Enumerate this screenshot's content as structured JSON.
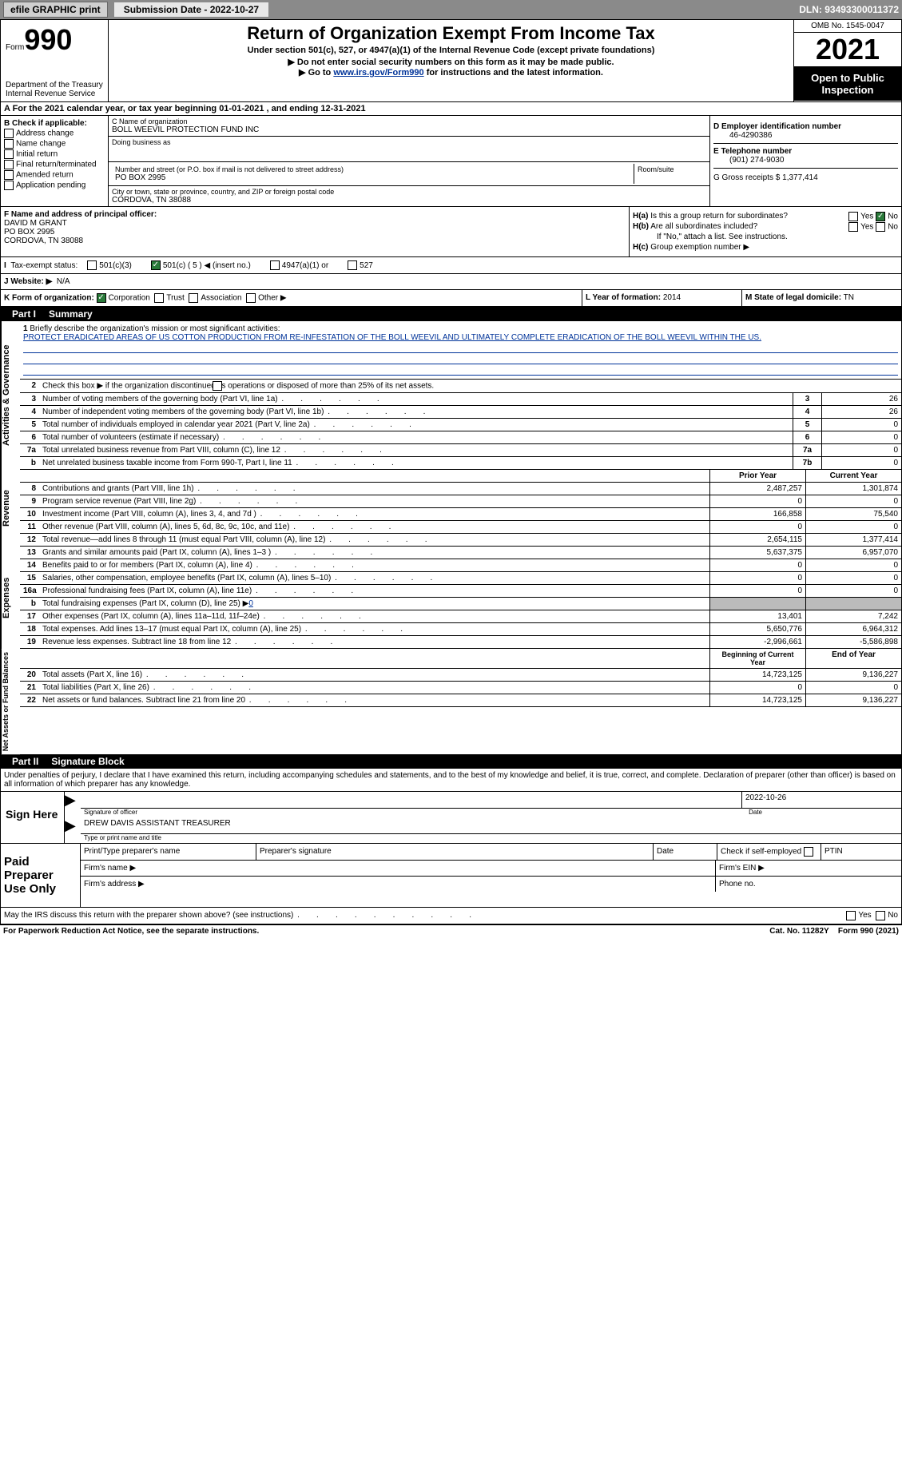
{
  "meta": {
    "efile": "efile GRAPHIC print",
    "submission_label": "Submission Date - 2022-10-27",
    "dln_label": "DLN: 93493300011372"
  },
  "header": {
    "form_prefix": "Form",
    "form_num": "990",
    "title": "Return of Organization Exempt From Income Tax",
    "subtitle": "Under section 501(c), 527, or 4947(a)(1) of the Internal Revenue Code (except private foundations)",
    "note1": "▶ Do not enter social security numbers on this form as it may be made public.",
    "note2_pre": "▶ Go to ",
    "note2_link": "www.irs.gov/Form990",
    "note2_post": " for instructions and the latest information.",
    "omb": "OMB No. 1545-0047",
    "year": "2021",
    "pub1": "Open to Public",
    "pub2": "Inspection",
    "dept": "Department of the Treasury",
    "irs": "Internal Revenue Service"
  },
  "sectionA": {
    "text": "A For the 2021 calendar year, or tax year beginning 01-01-2021    , and ending 12-31-2021"
  },
  "sectionB": {
    "label": "B Check if applicable:",
    "items": [
      "Address change",
      "Name change",
      "Initial return",
      "Final return/terminated",
      "Amended return",
      "Application pending"
    ]
  },
  "sectionC": {
    "name_label": "C Name of organization",
    "name": "BOLL WEEVIL PROTECTION FUND INC",
    "dba_label": "Doing business as",
    "dba": "",
    "addr_label": "Number and street (or P.O. box if mail is not delivered to street address)",
    "room_label": "Room/suite",
    "addr": "PO BOX 2995",
    "city_label": "City or town, state or province, country, and ZIP or foreign postal code",
    "city": "CORDOVA, TN  38088"
  },
  "sectionD": {
    "label": "D Employer identification number",
    "val": "46-4290386"
  },
  "sectionE": {
    "label": "E Telephone number",
    "val": "(901) 274-9030"
  },
  "sectionG": {
    "label": "G Gross receipts $",
    "val": "1,377,414"
  },
  "sectionF": {
    "label": "F Name and address of principal officer:",
    "name": "DAVID M GRANT",
    "addr1": "PO BOX 2995",
    "addr2": "CORDOVA, TN  38088"
  },
  "sectionH": {
    "a": "Is this a group return for subordinates?",
    "b": "Are all subordinates included?",
    "note": "If \"No,\" attach a list. See instructions.",
    "c": "Group exemption number ▶",
    "yes": "Yes",
    "no": "No"
  },
  "taxstatus": {
    "label": "Tax-exempt status:",
    "o1": "501(c)(3)",
    "o2": "501(c) ( 5 ) ◀ (insert no.)",
    "o3": "4947(a)(1) or",
    "o4": "527"
  },
  "website": {
    "label": "J   Website: ▶",
    "val": "N/A"
  },
  "sectionK": {
    "label": "K Form of organization:",
    "o1": "Corporation",
    "o2": "Trust",
    "o3": "Association",
    "o4": "Other ▶"
  },
  "sectionL": {
    "label": "L Year of formation:",
    "val": "2014"
  },
  "sectionM": {
    "label": "M State of legal domicile:",
    "val": "TN"
  },
  "part1": {
    "hdr": "Part I",
    "title": "Summary"
  },
  "mission": {
    "q": "Briefly describe the organization's mission or most significant activities:",
    "txt": "PROTECT ERADICATED AREAS OF US COTTON PRODUCTION FROM RE-INFESTATION OF THE BOLL WEEVIL AND ULTIMATELY COMPLETE ERADICATION OF THE BOLL WEEVIL WITHIN THE US."
  },
  "summary": {
    "side_ag": "Activities & Governance",
    "side_rev": "Revenue",
    "side_exp": "Expenses",
    "side_net": "Net Assets or Fund Balances",
    "q2": "Check this box ▶        if the organization discontinued its operations or disposed of more than 25% of its net assets.",
    "rows_ag": [
      {
        "n": "3",
        "t": "Number of voting members of the governing body (Part VI, line 1a)",
        "box": "3",
        "v": "26"
      },
      {
        "n": "4",
        "t": "Number of independent voting members of the governing body (Part VI, line 1b)",
        "box": "4",
        "v": "26"
      },
      {
        "n": "5",
        "t": "Total number of individuals employed in calendar year 2021 (Part V, line 2a)",
        "box": "5",
        "v": "0"
      },
      {
        "n": "6",
        "t": "Total number of volunteers (estimate if necessary)",
        "box": "6",
        "v": "0"
      },
      {
        "n": "7a",
        "t": "Total unrelated business revenue from Part VIII, column (C), line 12",
        "box": "7a",
        "v": "0"
      },
      {
        "n": "b",
        "t": "Net unrelated business taxable income from Form 990-T, Part I, line 11",
        "box": "7b",
        "v": "0"
      }
    ],
    "hdr_prior": "Prior Year",
    "hdr_curr": "Current Year",
    "rows_rev": [
      {
        "n": "8",
        "t": "Contributions and grants (Part VIII, line 1h)",
        "p": "2,487,257",
        "c": "1,301,874"
      },
      {
        "n": "9",
        "t": "Program service revenue (Part VIII, line 2g)",
        "p": "0",
        "c": "0"
      },
      {
        "n": "10",
        "t": "Investment income (Part VIII, column (A), lines 3, 4, and 7d )",
        "p": "166,858",
        "c": "75,540"
      },
      {
        "n": "11",
        "t": "Other revenue (Part VIII, column (A), lines 5, 6d, 8c, 9c, 10c, and 11e)",
        "p": "0",
        "c": "0"
      },
      {
        "n": "12",
        "t": "Total revenue—add lines 8 through 11 (must equal Part VIII, column (A), line 12)",
        "p": "2,654,115",
        "c": "1,377,414"
      }
    ],
    "rows_exp": [
      {
        "n": "13",
        "t": "Grants and similar amounts paid (Part IX, column (A), lines 1–3 )",
        "p": "5,637,375",
        "c": "6,957,070"
      },
      {
        "n": "14",
        "t": "Benefits paid to or for members (Part IX, column (A), line 4)",
        "p": "0",
        "c": "0"
      },
      {
        "n": "15",
        "t": "Salaries, other compensation, employee benefits (Part IX, column (A), lines 5–10)",
        "p": "0",
        "c": "0"
      },
      {
        "n": "16a",
        "t": "Professional fundraising fees (Part IX, column (A), line 11e)",
        "p": "0",
        "c": "0"
      }
    ],
    "row_16b": {
      "n": "b",
      "t": "Total fundraising expenses (Part IX, column (D), line 25) ▶",
      "v": "0"
    },
    "rows_exp2": [
      {
        "n": "17",
        "t": "Other expenses (Part IX, column (A), lines 11a–11d, 11f–24e)",
        "p": "13,401",
        "c": "7,242"
      },
      {
        "n": "18",
        "t": "Total expenses. Add lines 13–17 (must equal Part IX, column (A), line 25)",
        "p": "5,650,776",
        "c": "6,964,312"
      },
      {
        "n": "19",
        "t": "Revenue less expenses. Subtract line 18 from line 12",
        "p": "-2,996,661",
        "c": "-5,586,898"
      }
    ],
    "hdr_begin": "Beginning of Current Year",
    "hdr_end": "End of Year",
    "rows_net": [
      {
        "n": "20",
        "t": "Total assets (Part X, line 16)",
        "p": "14,723,125",
        "c": "9,136,227"
      },
      {
        "n": "21",
        "t": "Total liabilities (Part X, line 26)",
        "p": "0",
        "c": "0"
      },
      {
        "n": "22",
        "t": "Net assets or fund balances. Subtract line 21 from line 20",
        "p": "14,723,125",
        "c": "9,136,227"
      }
    ]
  },
  "part2": {
    "hdr": "Part II",
    "title": "Signature Block"
  },
  "sig": {
    "intro": "Under penalties of perjury, I declare that I have examined this return, including accompanying schedules and statements, and to the best of my knowledge and belief, it is true, correct, and complete. Declaration of preparer (other than officer) is based on all information of which preparer has any knowledge.",
    "sign_here": "Sign Here",
    "sig_officer": "Signature of officer",
    "date_label": "Date",
    "date_val": "2022-10-26",
    "name_type": "DREW DAVIS  ASSISTANT TREASURER",
    "name_type_lbl": "Type or print name and title"
  },
  "prep": {
    "label": "Paid Preparer Use Only",
    "h1": "Print/Type preparer's name",
    "h2": "Preparer's signature",
    "h3": "Date",
    "h4": "Check         if self-employed",
    "h5": "PTIN",
    "firm_name": "Firm's name    ▶",
    "firm_ein": "Firm's EIN ▶",
    "firm_addr": "Firm's address ▶",
    "phone": "Phone no."
  },
  "discuss": {
    "q": "May the IRS discuss this return with the preparer shown above? (see instructions)",
    "yes": "Yes",
    "no": "No"
  },
  "footer": {
    "pra": "For Paperwork Reduction Act Notice, see the separate instructions.",
    "cat": "Cat. No. 11282Y",
    "form": "Form 990 (2021)"
  },
  "colors": {
    "topbar_bg": "#8a8a8a",
    "link": "#003399",
    "check_green": "#2a7a3a",
    "gray_fill": "#bbbbbb"
  }
}
